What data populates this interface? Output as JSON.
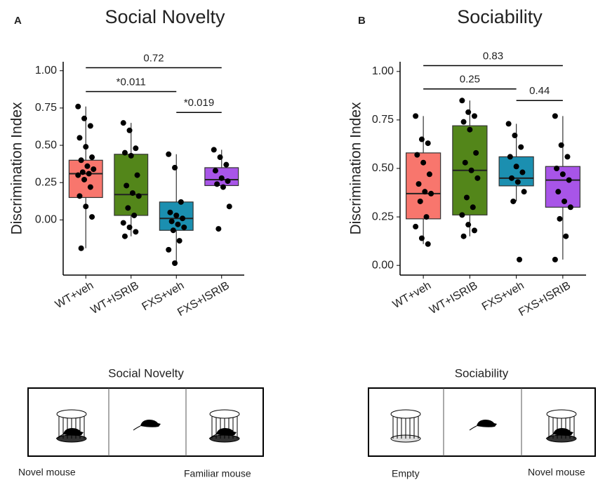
{
  "chart_data": [
    {
      "type": "box",
      "panel_label": "A",
      "title": "Social Novelty",
      "ylabel": "Discrimination Index",
      "categories": [
        "WT+veh",
        "WT+ISRIB",
        "FXS+veh",
        "FXS+ISRIB"
      ],
      "ylim": [
        -0.37,
        1.06
      ],
      "yticks": [
        {
          "value": 1,
          "label": "1.00"
        },
        {
          "value": 0.75,
          "label": "0.75"
        },
        {
          "value": 0.5,
          "label": "0.50"
        },
        {
          "value": 0.25,
          "label": "0.25"
        },
        {
          "value": 0,
          "label": "0.00"
        }
      ],
      "boxes": [
        {
          "color": "#f8766d",
          "whisker_low": -0.19,
          "q1": 0.15,
          "median": 0.31,
          "q3": 0.4,
          "whisker_high": 0.76,
          "points": [
            0.76,
            0.68,
            0.63,
            0.55,
            0.49,
            0.42,
            0.4,
            0.36,
            0.34,
            0.32,
            0.31,
            0.3,
            0.27,
            0.22,
            0.16,
            0.09,
            0.02,
            -0.19
          ]
        },
        {
          "color": "#53861a",
          "whisker_low": -0.11,
          "q1": 0.03,
          "median": 0.17,
          "q3": 0.44,
          "whisker_high": 0.65,
          "points": [
            0.65,
            0.6,
            0.48,
            0.45,
            0.43,
            0.3,
            0.23,
            0.18,
            0.16,
            0.08,
            0.03,
            -0.02,
            -0.05,
            -0.08,
            -0.11
          ]
        },
        {
          "color": "#1b8fb0",
          "whisker_low": -0.29,
          "q1": -0.07,
          "median": 0.01,
          "q3": 0.12,
          "whisker_high": 0.44,
          "points": [
            0.44,
            0.35,
            0.12,
            0.05,
            0.03,
            0.01,
            -0.01,
            -0.03,
            -0.05,
            -0.07,
            -0.14,
            -0.2,
            -0.29
          ]
        },
        {
          "color": "#a855e8",
          "whisker_low": 0.22,
          "q1": 0.23,
          "median": 0.27,
          "q3": 0.35,
          "whisker_high": 0.47,
          "points": [
            0.47,
            0.42,
            0.37,
            0.33,
            0.28,
            0.26,
            0.24,
            0.22,
            0.09,
            -0.06
          ]
        }
      ],
      "brackets": [
        {
          "from": 0,
          "to": 3,
          "y": 1.02,
          "label": "0.72"
        },
        {
          "from": 0,
          "to": 2,
          "y": 0.86,
          "label": "*0.011"
        },
        {
          "from": 2,
          "to": 3,
          "y": 0.72,
          "label": "*0.019"
        }
      ]
    },
    {
      "type": "box",
      "panel_label": "B",
      "title": "Sociability",
      "ylabel": "Discrimination Index",
      "categories": [
        "WT+veh",
        "WT+ISRIB",
        "FXS+veh",
        "FXS+ISRIB"
      ],
      "ylim": [
        -0.05,
        1.05
      ],
      "yticks": [
        {
          "value": 1,
          "label": "1.00"
        },
        {
          "value": 0.75,
          "label": "0.75"
        },
        {
          "value": 0.5,
          "label": "0.50"
        },
        {
          "value": 0.25,
          "label": "0.25"
        },
        {
          "value": 0,
          "label": "0.00"
        }
      ],
      "boxes": [
        {
          "color": "#f8766d",
          "whisker_low": 0.11,
          "q1": 0.24,
          "median": 0.37,
          "q3": 0.58,
          "whisker_high": 0.77,
          "points": [
            0.77,
            0.65,
            0.63,
            0.57,
            0.53,
            0.47,
            0.42,
            0.38,
            0.37,
            0.33,
            0.25,
            0.2,
            0.14,
            0.11
          ]
        },
        {
          "color": "#53861a",
          "whisker_low": 0.15,
          "q1": 0.26,
          "median": 0.49,
          "q3": 0.72,
          "whisker_high": 0.85,
          "points": [
            0.85,
            0.79,
            0.77,
            0.74,
            0.7,
            0.58,
            0.53,
            0.49,
            0.45,
            0.35,
            0.3,
            0.26,
            0.21,
            0.18,
            0.15
          ]
        },
        {
          "color": "#1b8fb0",
          "whisker_low": 0.33,
          "q1": 0.41,
          "median": 0.45,
          "q3": 0.56,
          "whisker_high": 0.73,
          "points": [
            0.73,
            0.67,
            0.61,
            0.56,
            0.51,
            0.48,
            0.45,
            0.43,
            0.38,
            0.33,
            0.03
          ]
        },
        {
          "color": "#a855e8",
          "whisker_low": 0.03,
          "q1": 0.3,
          "median": 0.44,
          "q3": 0.51,
          "whisker_high": 0.77,
          "points": [
            0.77,
            0.62,
            0.56,
            0.5,
            0.47,
            0.44,
            0.38,
            0.33,
            0.3,
            0.24,
            0.15,
            0.03
          ]
        }
      ],
      "brackets": [
        {
          "from": 0,
          "to": 3,
          "y": 1.03,
          "label": "0.83"
        },
        {
          "from": 0,
          "to": 2,
          "y": 0.91,
          "label": "0.25"
        },
        {
          "from": 2,
          "to": 3,
          "y": 0.85,
          "label": "0.44"
        }
      ]
    }
  ],
  "diagrams": [
    {
      "title": "Social Novelty",
      "left_label": "Novel mouse",
      "right_label": "Familiar mouse"
    },
    {
      "title": "Sociability",
      "left_label": "Empty",
      "right_label": "Novel mouse"
    }
  ]
}
